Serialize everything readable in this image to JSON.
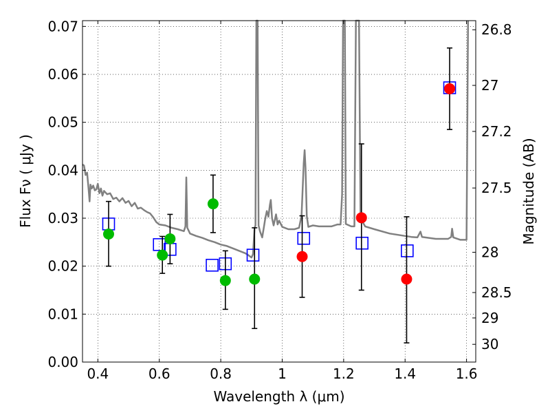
{
  "chart_data": {
    "type": "scatter",
    "xlabel": "Wavelength  λ (μm)",
    "ylabel": "Flux  Fν  ( μJy )",
    "y2label": "Magnitude (AB)",
    "xlim": [
      0.35,
      1.63
    ],
    "ylim": [
      0.0,
      0.0712
    ],
    "grid": true,
    "x_ticks": [
      {
        "value": 0.4,
        "label": "0.4"
      },
      {
        "value": 0.6,
        "label": "0.6"
      },
      {
        "value": 0.8,
        "label": "0.8"
      },
      {
        "value": 1.0,
        "label": "1"
      },
      {
        "value": 1.2,
        "label": "1.2"
      },
      {
        "value": 1.4,
        "label": "1.4"
      },
      {
        "value": 1.6,
        "label": "1.6"
      }
    ],
    "y_ticks": [
      {
        "value": 0.0,
        "label": "0.00"
      },
      {
        "value": 0.01,
        "label": "0.01"
      },
      {
        "value": 0.02,
        "label": "0.02"
      },
      {
        "value": 0.03,
        "label": "0.03"
      },
      {
        "value": 0.04,
        "label": "0.04"
      },
      {
        "value": 0.05,
        "label": "0.05"
      },
      {
        "value": 0.06,
        "label": "0.06"
      },
      {
        "value": 0.07,
        "label": "0.07"
      }
    ],
    "y2_ticks": [
      {
        "flux": 0.0693,
        "label": "26.8"
      },
      {
        "flux": 0.0577,
        "label": "27"
      },
      {
        "flux": 0.0481,
        "label": "27.2"
      },
      {
        "flux": 0.0363,
        "label": "27.5"
      },
      {
        "flux": 0.0229,
        "label": "28"
      },
      {
        "flux": 0.0145,
        "label": "28.5"
      },
      {
        "flux": 0.0092,
        "label": "29"
      },
      {
        "flux": 0.0037,
        "label": "30"
      }
    ],
    "model_spectrum": {
      "color": "#808080",
      "points": [
        [
          0.35,
          0.0412
        ],
        [
          0.355,
          0.041
        ],
        [
          0.36,
          0.039
        ],
        [
          0.365,
          0.0395
        ],
        [
          0.37,
          0.036
        ],
        [
          0.373,
          0.0335
        ],
        [
          0.376,
          0.037
        ],
        [
          0.38,
          0.0362
        ],
        [
          0.385,
          0.0368
        ],
        [
          0.39,
          0.0358
        ],
        [
          0.395,
          0.036
        ],
        [
          0.4,
          0.0372
        ],
        [
          0.405,
          0.0352
        ],
        [
          0.41,
          0.0362
        ],
        [
          0.415,
          0.0347
        ],
        [
          0.42,
          0.0357
        ],
        [
          0.43,
          0.035
        ],
        [
          0.44,
          0.0352
        ],
        [
          0.45,
          0.034
        ],
        [
          0.46,
          0.0343
        ],
        [
          0.47,
          0.0335
        ],
        [
          0.48,
          0.0342
        ],
        [
          0.49,
          0.0332
        ],
        [
          0.5,
          0.0336
        ],
        [
          0.51,
          0.0325
        ],
        [
          0.52,
          0.0332
        ],
        [
          0.53,
          0.032
        ],
        [
          0.54,
          0.0322
        ],
        [
          0.55,
          0.0317
        ],
        [
          0.56,
          0.0313
        ],
        [
          0.57,
          0.031
        ],
        [
          0.58,
          0.0302
        ],
        [
          0.59,
          0.0292
        ],
        [
          0.6,
          0.0287
        ],
        [
          0.62,
          0.0285
        ],
        [
          0.64,
          0.028
        ],
        [
          0.66,
          0.0277
        ],
        [
          0.68,
          0.0273
        ],
        [
          0.685,
          0.0283
        ],
        [
          0.688,
          0.0385
        ],
        [
          0.691,
          0.028
        ],
        [
          0.7,
          0.0268
        ],
        [
          0.72,
          0.0263
        ],
        [
          0.74,
          0.0259
        ],
        [
          0.76,
          0.0254
        ],
        [
          0.78,
          0.025
        ],
        [
          0.8,
          0.0245
        ],
        [
          0.82,
          0.0242
        ],
        [
          0.84,
          0.0237
        ],
        [
          0.86,
          0.0232
        ],
        [
          0.88,
          0.0227
        ],
        [
          0.89,
          0.0223
        ],
        [
          0.9,
          0.0218
        ],
        [
          0.905,
          0.0225
        ],
        [
          0.91,
          0.028
        ],
        [
          0.913,
          0.0285
        ],
        [
          0.916,
          0.0712
        ],
        [
          0.92,
          0.0712
        ],
        [
          0.923,
          0.0285
        ],
        [
          0.928,
          0.0272
        ],
        [
          0.935,
          0.026
        ],
        [
          0.94,
          0.028
        ],
        [
          0.945,
          0.03
        ],
        [
          0.95,
          0.0315
        ],
        [
          0.955,
          0.0303
        ],
        [
          0.96,
          0.0328
        ],
        [
          0.963,
          0.0338
        ],
        [
          0.967,
          0.03
        ],
        [
          0.972,
          0.0285
        ],
        [
          0.98,
          0.0308
        ],
        [
          0.985,
          0.0287
        ],
        [
          0.99,
          0.0295
        ],
        [
          1.0,
          0.0282
        ],
        [
          1.02,
          0.0277
        ],
        [
          1.04,
          0.0277
        ],
        [
          1.055,
          0.028
        ],
        [
          1.063,
          0.0305
        ],
        [
          1.07,
          0.0415
        ],
        [
          1.073,
          0.0442
        ],
        [
          1.076,
          0.0405
        ],
        [
          1.08,
          0.0305
        ],
        [
          1.085,
          0.0282
        ],
        [
          1.1,
          0.0285
        ],
        [
          1.12,
          0.0283
        ],
        [
          1.14,
          0.0283
        ],
        [
          1.16,
          0.0283
        ],
        [
          1.18,
          0.0287
        ],
        [
          1.19,
          0.0287
        ],
        [
          1.195,
          0.035
        ],
        [
          1.198,
          0.0712
        ],
        [
          1.204,
          0.0712
        ],
        [
          1.207,
          0.0288
        ],
        [
          1.225,
          0.0283
        ],
        [
          1.235,
          0.0283
        ],
        [
          1.24,
          0.0712
        ],
        [
          1.25,
          0.0712
        ],
        [
          1.255,
          0.03
        ],
        [
          1.27,
          0.0283
        ],
        [
          1.3,
          0.0277
        ],
        [
          1.35,
          0.0268
        ],
        [
          1.4,
          0.0263
        ],
        [
          1.42,
          0.0261
        ],
        [
          1.44,
          0.026
        ],
        [
          1.45,
          0.0272
        ],
        [
          1.455,
          0.0261
        ],
        [
          1.5,
          0.0257
        ],
        [
          1.54,
          0.0257
        ],
        [
          1.55,
          0.0261
        ],
        [
          1.553,
          0.0278
        ],
        [
          1.557,
          0.026
        ],
        [
          1.58,
          0.0255
        ],
        [
          1.6,
          0.0255
        ],
        [
          1.605,
          0.0712
        ]
      ]
    },
    "series": [
      {
        "marker": "open-square",
        "color": "#0000ff",
        "x": [
          0.435,
          0.6,
          0.635,
          0.772,
          0.815,
          0.905,
          1.07,
          1.26,
          1.407,
          1.545
        ],
        "y": [
          0.0288,
          0.0245,
          0.0235,
          0.0202,
          0.0205,
          0.0223,
          0.0258,
          0.0248,
          0.0232,
          0.0572
        ]
      },
      {
        "marker": "filled-circle",
        "color": "#00bb00",
        "x": [
          0.435,
          0.61,
          0.635,
          0.775,
          0.815,
          0.91
        ],
        "y": [
          0.0267,
          0.0223,
          0.0257,
          0.033,
          0.017,
          0.0173
        ],
        "yerr_low": [
          0.02,
          0.0185,
          0.0205,
          0.027,
          0.011,
          0.007
        ],
        "yerr_high": [
          0.0335,
          0.0262,
          0.0308,
          0.039,
          0.0232,
          0.028
        ]
      },
      {
        "marker": "filled-circle",
        "color": "#ff0000",
        "x": [
          1.065,
          1.258,
          1.405,
          1.545
        ],
        "y": [
          0.022,
          0.0301,
          0.0173,
          0.057
        ],
        "yerr_low": [
          0.0135,
          0.015,
          0.004,
          0.0485
        ],
        "yerr_high": [
          0.0305,
          0.0455,
          0.0303,
          0.0655
        ]
      }
    ]
  }
}
